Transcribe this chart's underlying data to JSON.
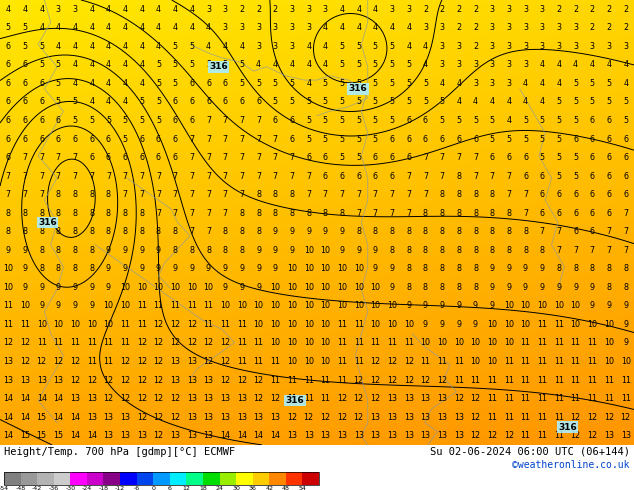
{
  "title_left": "Height/Temp. 700 hPa [gdmp][°C] ECMWF",
  "title_right": "Su 02-06-2024 06:00 UTC (06+144)",
  "credit": "©weatheronline.co.uk",
  "colorbar_values": [
    -54,
    -48,
    -42,
    -36,
    -30,
    -24,
    -18,
    -12,
    -6,
    0,
    6,
    12,
    18,
    24,
    30,
    36,
    42,
    48,
    54
  ],
  "colorbar_colors": [
    "#808080",
    "#999999",
    "#B3B3B3",
    "#CCCCCC",
    "#FF00FF",
    "#CC00CC",
    "#880088",
    "#0000FF",
    "#0044EE",
    "#0099FF",
    "#00EEFF",
    "#00FF88",
    "#00DD00",
    "#99EE00",
    "#FFFF00",
    "#FFCC00",
    "#FF8800",
    "#FF3300",
    "#CC0000"
  ],
  "fig_width": 6.34,
  "fig_height": 4.9,
  "map_bg_yellow": "#FFE800",
  "map_bg_orange": "#FFAA00",
  "contour_color": "#000000",
  "geo_line_color": "#8899AA",
  "number_color": "#000000",
  "label_bg_color": "#AAEEFF",
  "rows": 24,
  "cols": 38
}
